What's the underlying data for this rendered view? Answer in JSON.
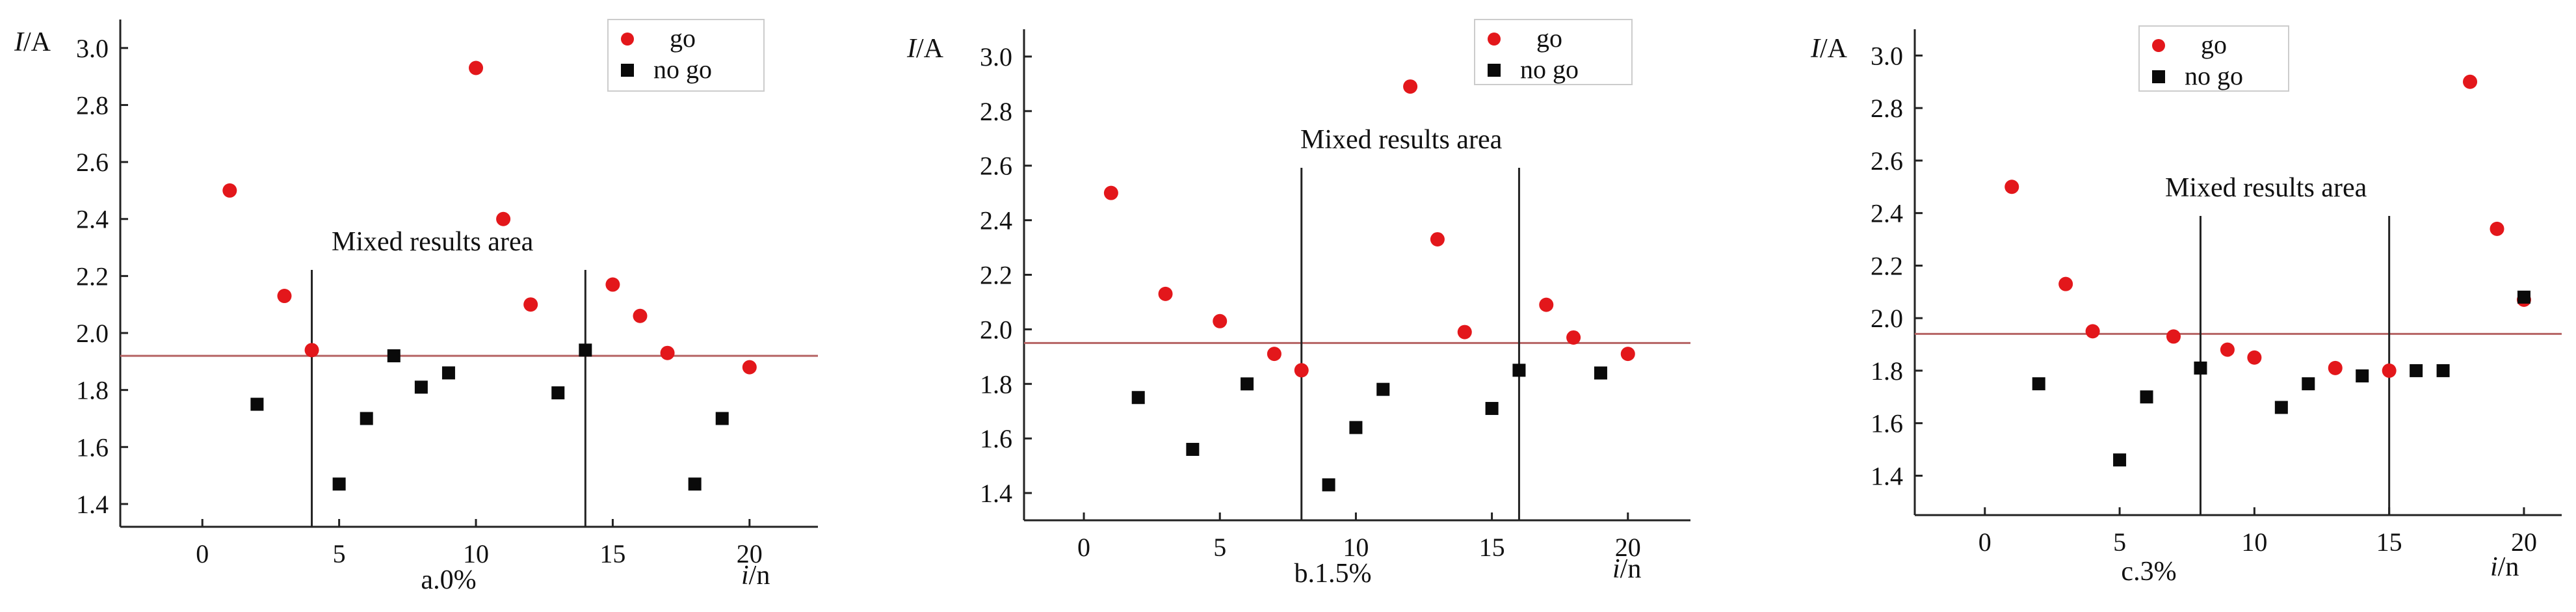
{
  "colors": {
    "go": "#e3171b",
    "no_go": "#0a0a0a",
    "threshold": "#b56363",
    "axis": "#222222"
  },
  "chart_data": [
    {
      "type": "scatter",
      "panel_label": "a.0%",
      "xlabel_var": "i",
      "xlabel_unit": "/n",
      "ylabel_var": "I",
      "ylabel_unit": "/A",
      "xlim": [
        -3,
        22.5
      ],
      "ylim": [
        1.32,
        3.1
      ],
      "xticks": [
        0,
        5,
        10,
        15,
        20
      ],
      "yticks": [
        1.4,
        1.6,
        1.8,
        2.0,
        2.2,
        2.4,
        2.6,
        2.8,
        3.0
      ],
      "ytick_labels": [
        "1.4",
        "1.6",
        "1.8",
        "2.0",
        "2.2",
        "2.4",
        "2.6",
        "2.8",
        "3.0"
      ],
      "threshold_y": 1.92,
      "mixed_area_bounds": [
        4,
        14
      ],
      "mixed_area_label": "Mixed results area",
      "legend": [
        "go",
        "no go"
      ],
      "series": [
        {
          "name": "go",
          "marker": "circle",
          "x": [
            1,
            3,
            4,
            10,
            11,
            12,
            15,
            16,
            17,
            20
          ],
          "y": [
            2.5,
            2.13,
            1.94,
            2.93,
            2.4,
            2.1,
            2.17,
            2.06,
            1.93,
            1.88
          ]
        },
        {
          "name": "no go",
          "marker": "square",
          "x": [
            2,
            5,
            6,
            7,
            8,
            9,
            13,
            14,
            18,
            19
          ],
          "y": [
            1.75,
            1.47,
            1.7,
            1.92,
            1.81,
            1.86,
            1.79,
            1.94,
            1.47,
            1.7
          ]
        }
      ]
    },
    {
      "type": "scatter",
      "panel_label": "b.1.5%",
      "xlabel_var": "i",
      "xlabel_unit": "/n",
      "ylabel_var": "I",
      "ylabel_unit": "/A",
      "xlim": [
        -2.2,
        22.3
      ],
      "ylim": [
        1.3,
        3.1
      ],
      "xticks": [
        0,
        5,
        10,
        15,
        20
      ],
      "yticks": [
        1.4,
        1.6,
        1.8,
        2.0,
        2.2,
        2.4,
        2.6,
        2.8,
        3.0
      ],
      "ytick_labels": [
        "1.4",
        "1.6",
        "1.8",
        "2.0",
        "2.2",
        "2.4",
        "2.6",
        "2.8",
        "3.0"
      ],
      "threshold_y": 1.95,
      "mixed_area_bounds": [
        8,
        16
      ],
      "mixed_area_label": "Mixed results area",
      "legend": [
        "go",
        "no go"
      ],
      "series": [
        {
          "name": "go",
          "marker": "circle",
          "x": [
            1,
            3,
            5,
            7,
            8,
            12,
            13,
            14,
            17,
            18,
            20
          ],
          "y": [
            2.5,
            2.13,
            2.03,
            1.91,
            1.85,
            2.89,
            2.33,
            1.99,
            2.09,
            1.97,
            1.91
          ]
        },
        {
          "name": "no go",
          "marker": "square",
          "x": [
            2,
            4,
            6,
            9,
            10,
            11,
            15,
            16,
            19
          ],
          "y": [
            1.75,
            1.56,
            1.8,
            1.43,
            1.64,
            1.78,
            1.71,
            1.85,
            1.84
          ]
        }
      ]
    },
    {
      "type": "scatter",
      "panel_label": "c.3%",
      "xlabel_var": "i",
      "xlabel_unit": "/n",
      "ylabel_var": "I",
      "ylabel_unit": "/A",
      "xlim": [
        -2.6,
        21.4
      ],
      "ylim": [
        1.25,
        3.1
      ],
      "xticks": [
        0,
        5,
        10,
        15,
        20
      ],
      "yticks": [
        1.4,
        1.6,
        1.8,
        2.0,
        2.2,
        2.4,
        2.6,
        2.8,
        3.0
      ],
      "ytick_labels": [
        "1.4",
        "1.6",
        "1.8",
        "2.0",
        "2.2",
        "2.4",
        "2.6",
        "2.8",
        "3.0"
      ],
      "threshold_y": 1.94,
      "mixed_area_bounds": [
        8,
        15
      ],
      "mixed_area_label": "Mixed results area",
      "legend": [
        "go",
        "no go"
      ],
      "series": [
        {
          "name": "go",
          "marker": "circle",
          "x": [
            1,
            3,
            4,
            7,
            9,
            10,
            13,
            15,
            18,
            19,
            20
          ],
          "y": [
            2.5,
            2.13,
            1.95,
            1.93,
            1.88,
            1.85,
            1.81,
            1.8,
            2.9,
            2.34,
            2.07
          ]
        },
        {
          "name": "no go",
          "marker": "square",
          "x": [
            2,
            5,
            6,
            8,
            11,
            12,
            14,
            16,
            17,
            20
          ],
          "y": [
            1.75,
            1.46,
            1.7,
            1.81,
            1.66,
            1.75,
            1.78,
            1.8,
            1.8,
            2.08
          ]
        }
      ]
    }
  ]
}
